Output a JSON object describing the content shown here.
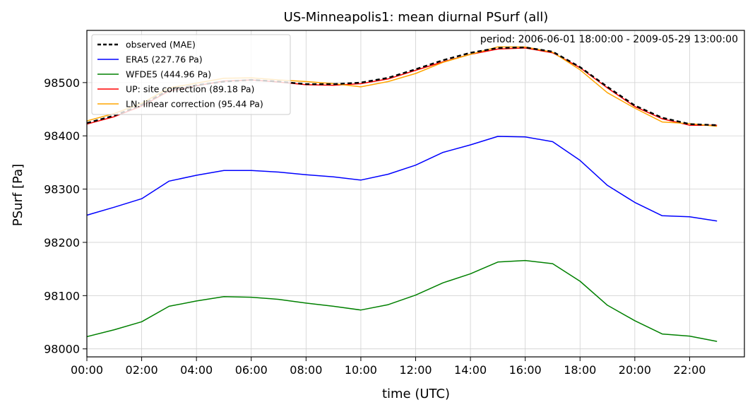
{
  "chart_data": {
    "type": "line",
    "title": "US-Minneapolis1: mean diurnal PSurf (all)",
    "xlabel": "time (UTC)",
    "ylabel": "PSurf [Pa]",
    "annotation": "period: 2006-06-01 18:00:00 - 2009-05-29 13:00:00",
    "x": [
      0,
      1,
      2,
      3,
      4,
      5,
      6,
      7,
      8,
      9,
      10,
      11,
      12,
      13,
      14,
      15,
      16,
      17,
      18,
      19,
      20,
      21,
      22,
      23
    ],
    "xticks": [
      0,
      2,
      4,
      6,
      8,
      10,
      12,
      14,
      16,
      18,
      20,
      22
    ],
    "xtick_labels": [
      "00:00",
      "02:00",
      "04:00",
      "06:00",
      "08:00",
      "10:00",
      "12:00",
      "14:00",
      "16:00",
      "18:00",
      "20:00",
      "22:00"
    ],
    "xlim": [
      0,
      24
    ],
    "ylim": [
      97985,
      98598
    ],
    "yticks": [
      98000,
      98100,
      98200,
      98300,
      98400,
      98500
    ],
    "yticks_labels": [
      "98000",
      "98100",
      "98200",
      "98300",
      "98400",
      "98500"
    ],
    "grid": true,
    "legend_position": "top-left",
    "series": [
      {
        "name": "ERA5 (227.76 Pa)",
        "color": "#0000ff",
        "style": "solid",
        "values": [
          98251,
          98266,
          98282,
          98315,
          98326,
          98335,
          98335,
          98332,
          98327,
          98323,
          98317,
          98328,
          98345,
          98369,
          98383,
          98399,
          98398,
          98389,
          98354,
          98307,
          98275,
          98250,
          98248,
          98240
        ]
      },
      {
        "name": "WFDE5 (444.96 Pa)",
        "color": "#008000",
        "style": "solid",
        "values": [
          98023,
          98036,
          98051,
          98080,
          98090,
          98098,
          98097,
          98093,
          98086,
          98080,
          98073,
          98083,
          98101,
          98124,
          98141,
          98163,
          98166,
          98160,
          98127,
          98082,
          98053,
          98028,
          98024,
          98014
        ]
      },
      {
        "name": "UP: site correction (89.18 Pa)",
        "color": "#ff0000",
        "style": "solid",
        "values": [
          98422,
          98436,
          98456,
          98484,
          98494,
          98503,
          98505,
          98501,
          98496,
          98495,
          98498,
          98507,
          98523,
          98539,
          98553,
          98563,
          98565,
          98556,
          98528,
          98490,
          98455,
          98432,
          98420,
          98420
        ]
      },
      {
        "name": "LN: linear correction (95.44 Pa)",
        "color": "#ffa500",
        "style": "solid",
        "values": [
          98428,
          98442,
          98461,
          98490,
          98499,
          98508,
          98509,
          98505,
          98502,
          98498,
          98492,
          98502,
          98517,
          98538,
          98553,
          98567,
          98567,
          98557,
          98524,
          98481,
          98452,
          98426,
          98423,
          98418
        ]
      },
      {
        "name": "observed (MAE)",
        "color": "#000000",
        "style": "dashed",
        "values": [
          98424,
          98438,
          98458,
          98486,
          98495,
          98502,
          98505,
          98502,
          98497,
          98497,
          98500,
          98509,
          98525,
          98542,
          98556,
          98565,
          98566,
          98558,
          98529,
          98492,
          98457,
          98434,
          98422,
          98420
        ]
      }
    ],
    "legend_order": [
      "observed (MAE)",
      "ERA5 (227.76 Pa)",
      "WFDE5 (444.96 Pa)",
      "UP: site correction (89.18 Pa)",
      "LN: linear correction (95.44 Pa)"
    ]
  }
}
